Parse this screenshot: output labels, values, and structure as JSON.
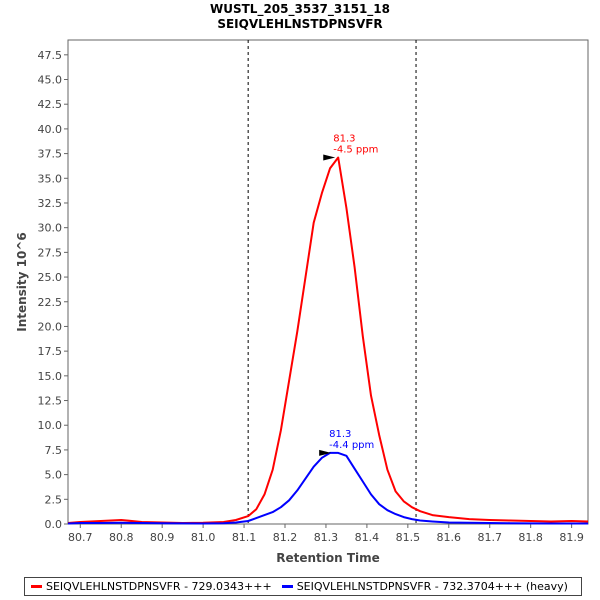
{
  "chart_data": {
    "type": "line",
    "title": "WUSTL_205_3537_3151_18",
    "subtitle": "SEIQVLEHLNSTDPNSVFR",
    "xlabel": "Retention Time",
    "ylabel": "Intensity 10^6",
    "xlim": [
      80.67,
      81.94
    ],
    "ylim": [
      0,
      49.0
    ],
    "x_ticks": [
      "80.7",
      "80.8",
      "80.9",
      "81.0",
      "81.1",
      "81.2",
      "81.3",
      "81.4",
      "81.5",
      "81.6",
      "81.7",
      "81.8",
      "81.9"
    ],
    "y_ticks": [
      "0.0",
      "2.5",
      "5.0",
      "7.5",
      "10.0",
      "12.5",
      "15.0",
      "17.5",
      "20.0",
      "22.5",
      "25.0",
      "27.5",
      "30.0",
      "32.5",
      "35.0",
      "37.5",
      "40.0",
      "42.5",
      "45.0",
      "47.5"
    ],
    "vlines": [
      81.11,
      81.52
    ],
    "legend_position": "bottom",
    "series": [
      {
        "name": "SEIQVLEHLNSTDPNSVFR - 729.0343+++",
        "color": "#ff0000",
        "x": [
          80.67,
          80.7,
          80.75,
          80.8,
          80.85,
          80.9,
          80.95,
          81.0,
          81.05,
          81.08,
          81.11,
          81.13,
          81.15,
          81.17,
          81.19,
          81.21,
          81.23,
          81.25,
          81.27,
          81.29,
          81.31,
          81.33,
          81.35,
          81.37,
          81.39,
          81.41,
          81.43,
          81.45,
          81.47,
          81.49,
          81.51,
          81.53,
          81.56,
          81.6,
          81.65,
          81.7,
          81.75,
          81.8,
          81.85,
          81.9,
          81.94
        ],
        "y": [
          0.1,
          0.2,
          0.3,
          0.4,
          0.2,
          0.15,
          0.1,
          0.12,
          0.2,
          0.4,
          0.8,
          1.5,
          3.0,
          5.5,
          9.5,
          14.5,
          19.5,
          25.0,
          30.5,
          33.5,
          36.0,
          37.1,
          32.0,
          26.0,
          19.0,
          13.0,
          9.0,
          5.5,
          3.3,
          2.3,
          1.7,
          1.3,
          0.9,
          0.7,
          0.5,
          0.4,
          0.35,
          0.3,
          0.25,
          0.3,
          0.25
        ]
      },
      {
        "name": "SEIQVLEHLNSTDPNSVFR - 732.3704+++ (heavy)",
        "color": "#0000ff",
        "x": [
          80.67,
          80.7,
          80.75,
          80.8,
          80.85,
          80.9,
          80.95,
          81.0,
          81.05,
          81.08,
          81.11,
          81.13,
          81.15,
          81.17,
          81.19,
          81.21,
          81.23,
          81.25,
          81.27,
          81.29,
          81.31,
          81.33,
          81.35,
          81.37,
          81.39,
          81.41,
          81.43,
          81.45,
          81.47,
          81.49,
          81.51,
          81.53,
          81.56,
          81.6,
          81.65,
          81.7,
          81.75,
          81.8,
          81.85,
          81.9,
          81.94
        ],
        "y": [
          0.05,
          0.1,
          0.1,
          0.12,
          0.1,
          0.08,
          0.06,
          0.05,
          0.08,
          0.15,
          0.3,
          0.6,
          0.9,
          1.2,
          1.7,
          2.4,
          3.4,
          4.6,
          5.8,
          6.7,
          7.2,
          7.2,
          6.9,
          5.6,
          4.3,
          3.0,
          2.0,
          1.4,
          1.0,
          0.7,
          0.5,
          0.35,
          0.25,
          0.15,
          0.12,
          0.1,
          0.08,
          0.06,
          0.05,
          0.05,
          0.05
        ]
      }
    ],
    "annotations": [
      {
        "series": 0,
        "x": 81.33,
        "y": 37.1,
        "lines": [
          "81.3",
          "-4.5 ppm"
        ]
      },
      {
        "series": 1,
        "x": 81.32,
        "y": 7.2,
        "lines": [
          "81.3",
          "-4.4 ppm"
        ]
      }
    ]
  }
}
